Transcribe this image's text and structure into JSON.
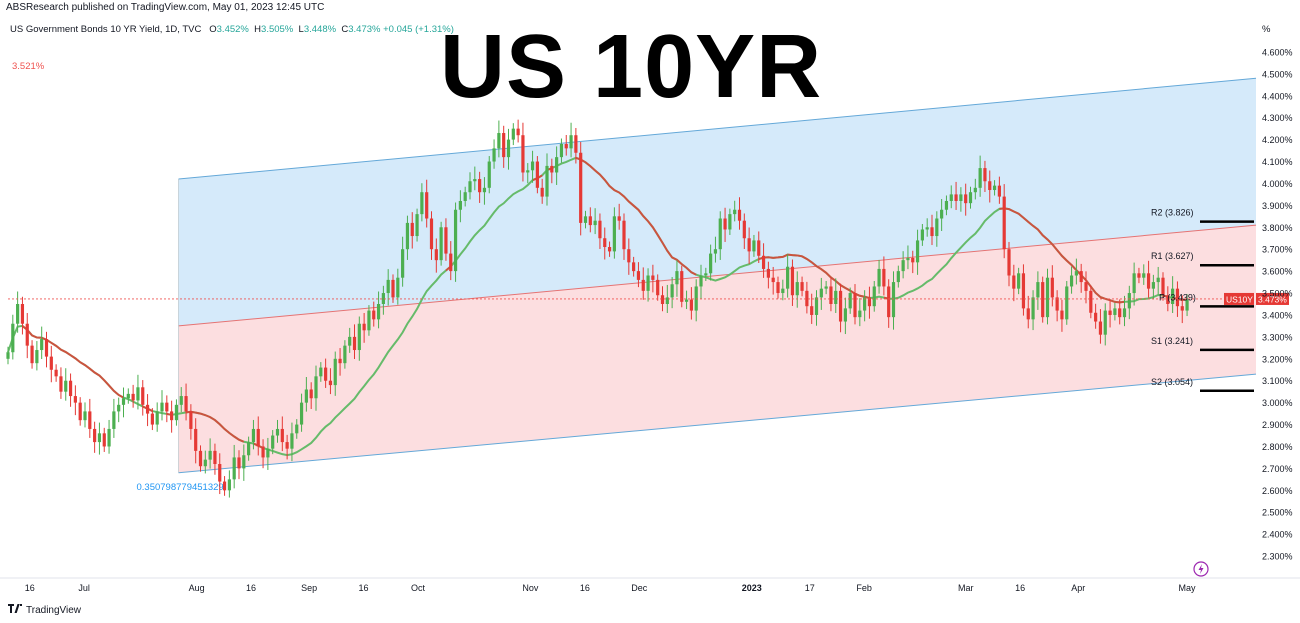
{
  "header": {
    "published": "ABSResearch published on TradingView.com, May 01, 2023 12:45 UTC",
    "symbol_desc": "US Government Bonds 10 YR Yield, 1D, TVC",
    "open_label": "O",
    "open": "3.452%",
    "high_label": "H",
    "high": "3.505%",
    "low_label": "L",
    "low": "3.448%",
    "close_label": "C",
    "close": "3.473%",
    "change": "+0.045 (+1.31%)",
    "left_value": "3.521%",
    "title": "US 10YR",
    "unit": "%"
  },
  "footer": {
    "brand": "TradingView",
    "logo": "tradingview-logo-icon"
  },
  "colors": {
    "up": "#26a69a",
    "down": "#ef5350",
    "candle_up": "#4caf50",
    "candle_down": "#e53935",
    "upper_band": "#b3d9f5",
    "lower_band": "#fbd3d6",
    "channel_line": "#64a8d8",
    "ma_green": "#66bb6a",
    "ma_red": "#e57373",
    "price_line": "#ef5350"
  },
  "chart_data": {
    "type": "candlestick",
    "y_axis": {
      "unit": "%",
      "ylim": [
        2.2,
        4.7
      ],
      "ticks": [
        "4.600%",
        "4.500%",
        "4.400%",
        "4.300%",
        "4.200%",
        "4.100%",
        "4.000%",
        "3.900%",
        "3.800%",
        "3.700%",
        "3.600%",
        "3.500%",
        "3.400%",
        "3.300%",
        "3.200%",
        "3.100%",
        "3.000%",
        "2.900%",
        "2.800%",
        "2.700%",
        "2.600%",
        "2.500%",
        "2.400%",
        "2.300%"
      ],
      "tick_values": [
        4.6,
        4.5,
        4.4,
        4.3,
        4.2,
        4.1,
        4.0,
        3.9,
        3.8,
        3.7,
        3.6,
        3.5,
        3.4,
        3.3,
        3.2,
        3.1,
        3.0,
        2.9,
        2.8,
        2.7,
        2.6,
        2.5,
        2.4,
        2.3
      ]
    },
    "x_axis": {
      "tick_labels": [
        "16",
        "Jul",
        "Aug",
        "16",
        "Sep",
        "16",
        "Oct",
        "Nov",
        "16",
        "Dec",
        "2023",
        "17",
        "Feb",
        "Mar",
        "16",
        "Apr",
        "May"
      ],
      "tick_dates": [
        "2022-06-16",
        "2022-07-01",
        "2022-08-01",
        "2022-08-16",
        "2022-09-01",
        "2022-09-16",
        "2022-10-01",
        "2022-11-01",
        "2022-11-16",
        "2022-12-01",
        "2023-01-01",
        "2023-01-17",
        "2023-02-01",
        "2023-03-01",
        "2023-03-16",
        "2023-04-01",
        "2023-05-01"
      ],
      "range": [
        "2022-06-10",
        "2023-05-20"
      ]
    },
    "current_price": {
      "symbol": "US10Y",
      "value": 3.473,
      "label": "3.473%"
    },
    "pivots": [
      {
        "name": "R2",
        "label": "R2 (3.826)",
        "value": 3.826
      },
      {
        "name": "R1",
        "label": "R1 (3.627)",
        "value": 3.627
      },
      {
        "name": "P",
        "label": "P (3.439)",
        "value": 3.439
      },
      {
        "name": "S1",
        "label": "S1 (3.241)",
        "value": 3.241
      },
      {
        "name": "S2",
        "label": "S2 (3.054)",
        "value": 3.054
      }
    ],
    "channel": {
      "start": "2022-07-27",
      "end": "2023-05-20",
      "upper": [
        4.02,
        4.48
      ],
      "middle": [
        3.35,
        3.81
      ],
      "lower": [
        2.68,
        3.13
      ],
      "annotation": "0.350798779451329"
    },
    "ohlc_closes": [
      3.23,
      3.36,
      3.45,
      3.36,
      3.26,
      3.18,
      3.24,
      3.29,
      3.21,
      3.15,
      3.12,
      3.05,
      3.1,
      3.03,
      3.0,
      2.92,
      2.96,
      2.88,
      2.82,
      2.86,
      2.8,
      2.88,
      2.96,
      2.99,
      3.02,
      3.04,
      3.01,
      3.07,
      2.99,
      2.95,
      2.9,
      2.96,
      3.0,
      2.96,
      2.92,
      2.99,
      3.03,
      2.96,
      2.88,
      2.78,
      2.71,
      2.74,
      2.78,
      2.72,
      2.64,
      2.6,
      2.65,
      2.75,
      2.7,
      2.76,
      2.82,
      2.88,
      2.8,
      2.75,
      2.79,
      2.85,
      2.88,
      2.82,
      2.79,
      2.86,
      2.9,
      3.0,
      3.06,
      3.02,
      3.12,
      3.16,
      3.1,
      3.08,
      3.2,
      3.18,
      3.26,
      3.3,
      3.24,
      3.36,
      3.33,
      3.42,
      3.38,
      3.45,
      3.5,
      3.56,
      3.48,
      3.57,
      3.7,
      3.82,
      3.76,
      3.86,
      3.96,
      3.84,
      3.7,
      3.65,
      3.8,
      3.68,
      3.6,
      3.88,
      3.92,
      3.96,
      4.01,
      4.02,
      3.96,
      3.98,
      4.1,
      4.16,
      4.23,
      4.12,
      4.2,
      4.25,
      4.22,
      4.05,
      4.06,
      4.1,
      3.98,
      3.94,
      4.08,
      4.05,
      4.12,
      4.18,
      4.16,
      4.22,
      4.14,
      3.82,
      3.85,
      3.81,
      3.83,
      3.75,
      3.71,
      3.69,
      3.85,
      3.83,
      3.7,
      3.64,
      3.6,
      3.56,
      3.51,
      3.58,
      3.56,
      3.49,
      3.45,
      3.48,
      3.54,
      3.6,
      3.46,
      3.47,
      3.42,
      3.53,
      3.58,
      3.59,
      3.68,
      3.7,
      3.84,
      3.79,
      3.86,
      3.88,
      3.83,
      3.75,
      3.69,
      3.74,
      3.67,
      3.61,
      3.57,
      3.55,
      3.5,
      3.52,
      3.62,
      3.49,
      3.55,
      3.51,
      3.44,
      3.4,
      3.48,
      3.52,
      3.53,
      3.45,
      3.51,
      3.37,
      3.43,
      3.5,
      3.39,
      3.42,
      3.48,
      3.44,
      3.53,
      3.61,
      3.53,
      3.39,
      3.55,
      3.6,
      3.65,
      3.66,
      3.64,
      3.74,
      3.79,
      3.8,
      3.76,
      3.84,
      3.88,
      3.92,
      3.95,
      3.92,
      3.95,
      3.91,
      3.96,
      3.98,
      4.07,
      4.01,
      3.97,
      3.99,
      3.94,
      3.7,
      3.58,
      3.52,
      3.59,
      3.43,
      3.38,
      3.48,
      3.55,
      3.39,
      3.57,
      3.48,
      3.42,
      3.38,
      3.53,
      3.58,
      3.6,
      3.55,
      3.51,
      3.41,
      3.37,
      3.31,
      3.42,
      3.4,
      3.43,
      3.39,
      3.43,
      3.5,
      3.59,
      3.57,
      3.59,
      3.52,
      3.55,
      3.57,
      3.49,
      3.45,
      3.52,
      3.44,
      3.42,
      3.47
    ]
  }
}
